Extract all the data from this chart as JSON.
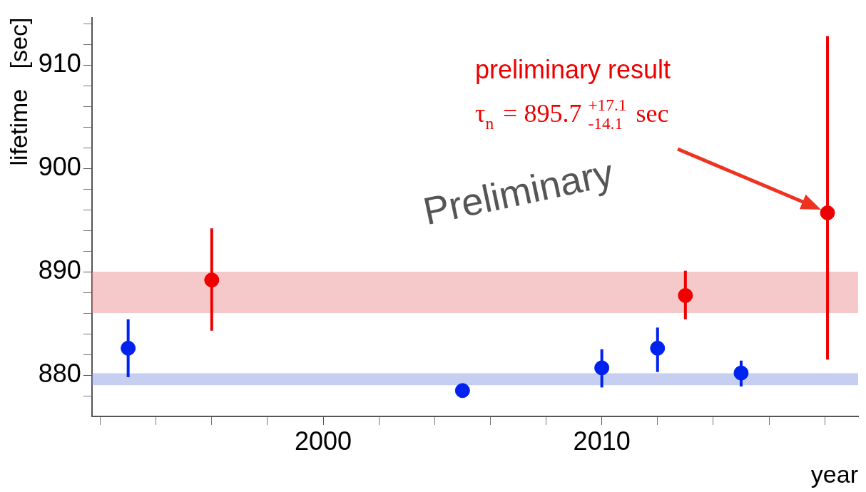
{
  "chart_data": {
    "type": "scatter",
    "xlabel": "year",
    "ylabel": "lifetime   [sec]",
    "xlim": [
      1991.7,
      2019.2
    ],
    "xticks": [
      {
        "value": 1992,
        "label": null
      },
      {
        "value": 1994,
        "label": null
      },
      {
        "value": 1996,
        "label": null
      },
      {
        "value": 1998,
        "label": null
      },
      2000,
      {
        "value": 2002,
        "label": null
      },
      {
        "value": 2004,
        "label": null
      },
      {
        "value": 2006,
        "label": null
      },
      {
        "value": 2008,
        "label": null
      },
      2010,
      {
        "value": 2012,
        "label": null
      },
      {
        "value": 2014,
        "label": null
      },
      {
        "value": 2016,
        "label": null
      },
      {
        "value": 2018,
        "label": null
      }
    ],
    "ylim": [
      876,
      914.6
    ],
    "yticks": [
      {
        "value": 878,
        "label": null
      },
      880,
      {
        "value": 882,
        "label": null
      },
      {
        "value": 884,
        "label": null
      },
      {
        "value": 886,
        "label": null
      },
      {
        "value": 888,
        "label": null
      },
      890,
      {
        "value": 892,
        "label": null
      },
      {
        "value": 894,
        "label": null
      },
      {
        "value": 896,
        "label": null
      },
      {
        "value": 898,
        "label": null
      },
      900,
      {
        "value": 902,
        "label": null
      },
      {
        "value": 904,
        "label": null
      },
      {
        "value": 906,
        "label": null
      },
      {
        "value": 908,
        "label": null
      },
      910,
      {
        "value": 912,
        "label": null
      },
      {
        "value": 914,
        "label": null
      }
    ],
    "grid": false,
    "legend": false,
    "marker": "circle",
    "series": [
      {
        "color": "#0022ee",
        "x": [
          1993,
          2005,
          2010,
          2012,
          2015
        ],
        "values": [
          882.6,
          878.5,
          880.7,
          882.6,
          880.2
        ],
        "errors": [
          [
            879.8,
            885.4
          ],
          [
            878.0,
            879.0
          ],
          [
            878.8,
            882.5
          ],
          [
            880.3,
            884.6
          ],
          [
            878.9,
            881.4
          ]
        ]
      },
      {
        "color": "#ee0000",
        "x": [
          1996,
          2013,
          2018.1
        ],
        "values": [
          889.2,
          887.7,
          895.7
        ],
        "errors": [
          [
            884.3,
            894.2
          ],
          [
            885.4,
            890.1
          ],
          [
            881.5,
            912.8
          ]
        ]
      }
    ],
    "bands": [
      {
        "axis": "y",
        "from": 886,
        "to": 890,
        "color": "#e88888"
      },
      {
        "axis": "y",
        "from": 879.0,
        "to": 880.2,
        "color": "#8094e0"
      }
    ],
    "annotations": [
      "Preliminary",
      "preliminary result",
      "τ$_{n}$ = 895.7 $^{+17.1}$$_{-14.1}$ sec"
    ]
  }
}
